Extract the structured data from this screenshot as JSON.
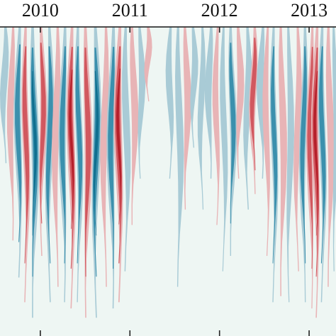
{
  "chart_data": {
    "type": "heatmap",
    "title": "",
    "xlabel": "",
    "ylabel": "",
    "x_tick_labels": [
      "2010",
      "2011",
      "2012",
      "2013"
    ],
    "x_tick_years": [
      2010,
      2011,
      2012,
      2013
    ],
    "x_range": [
      2009.55,
      2013.3
    ],
    "y_range": [
      0,
      1
    ],
    "colormap": {
      "strong_negative": "#0f6f8f",
      "moderate_negative": "#3b90ad",
      "weak_negative": "#a9cbd6",
      "neutral": "#eef6f3",
      "weak_positive": "#e8b4b6",
      "moderate_positive": "#d1585f",
      "strong_positive": "#b51f2a"
    },
    "bands": [
      {
        "x": 2009.6,
        "width": 0.03,
        "depth": 0.45,
        "sign": -1,
        "amplitude": 0.4
      },
      {
        "x": 2009.68,
        "width": 0.025,
        "depth": 0.7,
        "sign": 1,
        "amplitude": 0.5
      },
      {
        "x": 2009.76,
        "width": 0.035,
        "depth": 0.82,
        "sign": -1,
        "amplitude": 0.65
      },
      {
        "x": 2009.84,
        "width": 0.03,
        "depth": 0.9,
        "sign": 1,
        "amplitude": 0.6
      },
      {
        "x": 2009.93,
        "width": 0.04,
        "depth": 0.95,
        "sign": -1,
        "amplitude": 0.95
      },
      {
        "x": 2010.02,
        "width": 0.03,
        "depth": 0.75,
        "sign": 1,
        "amplitude": 0.7
      },
      {
        "x": 2010.1,
        "width": 0.035,
        "depth": 0.9,
        "sign": -1,
        "amplitude": 0.7
      },
      {
        "x": 2010.18,
        "width": 0.03,
        "depth": 0.85,
        "sign": 1,
        "amplitude": 0.55
      },
      {
        "x": 2010.26,
        "width": 0.035,
        "depth": 0.9,
        "sign": -1,
        "amplitude": 0.75
      },
      {
        "x": 2010.35,
        "width": 0.04,
        "depth": 0.92,
        "sign": 1,
        "amplitude": 0.9
      },
      {
        "x": 2010.43,
        "width": 0.03,
        "depth": 0.9,
        "sign": -1,
        "amplitude": 0.6
      },
      {
        "x": 2010.52,
        "width": 0.04,
        "depth": 0.95,
        "sign": 1,
        "amplitude": 0.8
      },
      {
        "x": 2010.62,
        "width": 0.045,
        "depth": 0.95,
        "sign": -1,
        "amplitude": 0.95
      },
      {
        "x": 2010.72,
        "width": 0.03,
        "depth": 0.85,
        "sign": 1,
        "amplitude": 0.45
      },
      {
        "x": 2010.8,
        "width": 0.04,
        "depth": 0.92,
        "sign": -1,
        "amplitude": 0.85
      },
      {
        "x": 2010.88,
        "width": 0.045,
        "depth": 0.9,
        "sign": 1,
        "amplitude": 0.95
      },
      {
        "x": 2010.96,
        "width": 0.03,
        "depth": 0.8,
        "sign": -1,
        "amplitude": 0.5
      },
      {
        "x": 2011.04,
        "width": 0.03,
        "depth": 0.65,
        "sign": 1,
        "amplitude": 0.45
      },
      {
        "x": 2011.12,
        "width": 0.025,
        "depth": 0.5,
        "sign": -1,
        "amplitude": 0.35
      },
      {
        "x": 2011.2,
        "width": 0.02,
        "depth": 0.25,
        "sign": 1,
        "amplitude": 0.35
      },
      {
        "x": 2011.45,
        "width": 0.025,
        "depth": 0.5,
        "sign": -1,
        "amplitude": 0.45
      },
      {
        "x": 2011.55,
        "width": 0.03,
        "depth": 0.85,
        "sign": -1,
        "amplitude": 0.55
      },
      {
        "x": 2011.63,
        "width": 0.03,
        "depth": 0.6,
        "sign": 1,
        "amplitude": 0.45
      },
      {
        "x": 2011.71,
        "width": 0.025,
        "depth": 0.4,
        "sign": -1,
        "amplitude": 0.4
      },
      {
        "x": 2011.8,
        "width": 0.02,
        "depth": 0.6,
        "sign": -1,
        "amplitude": 0.4
      },
      {
        "x": 2011.89,
        "width": 0.03,
        "depth": 0.5,
        "sign": -1,
        "amplitude": 0.45
      },
      {
        "x": 2011.97,
        "width": 0.02,
        "depth": 0.65,
        "sign": 1,
        "amplitude": 0.4
      },
      {
        "x": 2012.05,
        "width": 0.02,
        "depth": 0.8,
        "sign": -1,
        "amplitude": 0.45
      },
      {
        "x": 2012.14,
        "width": 0.03,
        "depth": 0.75,
        "sign": -1,
        "amplitude": 0.6
      },
      {
        "x": 2012.22,
        "width": 0.03,
        "depth": 0.5,
        "sign": 1,
        "amplitude": 0.45
      },
      {
        "x": 2012.31,
        "width": 0.03,
        "depth": 0.6,
        "sign": -1,
        "amplitude": 0.5
      },
      {
        "x": 2012.38,
        "width": 0.03,
        "depth": 0.55,
        "sign": 1,
        "amplitude": 0.8
      },
      {
        "x": 2012.47,
        "width": 0.03,
        "depth": 0.5,
        "sign": -1,
        "amplitude": 0.5
      },
      {
        "x": 2012.53,
        "width": 0.02,
        "depth": 0.75,
        "sign": 1,
        "amplitude": 0.4
      },
      {
        "x": 2012.61,
        "width": 0.025,
        "depth": 0.9,
        "sign": -1,
        "amplitude": 0.6
      },
      {
        "x": 2012.7,
        "width": 0.03,
        "depth": 0.88,
        "sign": 1,
        "amplitude": 0.55
      },
      {
        "x": 2012.78,
        "width": 0.025,
        "depth": 0.9,
        "sign": -1,
        "amplitude": 0.5
      },
      {
        "x": 2012.87,
        "width": 0.025,
        "depth": 0.8,
        "sign": 1,
        "amplitude": 0.45
      },
      {
        "x": 2012.94,
        "width": 0.03,
        "depth": 0.9,
        "sign": -1,
        "amplitude": 0.6
      },
      {
        "x": 2013.02,
        "width": 0.025,
        "depth": 0.92,
        "sign": 1,
        "amplitude": 0.6
      },
      {
        "x": 2013.08,
        "width": 0.035,
        "depth": 0.95,
        "sign": 1,
        "amplitude": 0.95
      },
      {
        "x": 2013.15,
        "width": 0.03,
        "depth": 0.9,
        "sign": -1,
        "amplitude": 0.6
      },
      {
        "x": 2013.23,
        "width": 0.03,
        "depth": 0.85,
        "sign": 1,
        "amplitude": 0.5
      },
      {
        "x": 2013.29,
        "width": 0.02,
        "depth": 0.8,
        "sign": -1,
        "amplitude": 0.4
      }
    ]
  }
}
